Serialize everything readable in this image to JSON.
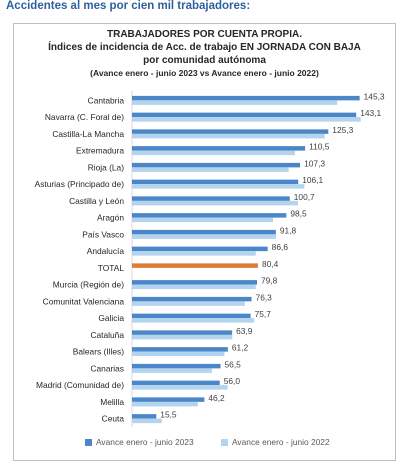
{
  "heading": "Accidentes al mes por cien mil trabajadores:",
  "chart_data": {
    "type": "bar",
    "orientation": "horizontal",
    "title": [
      "TRABAJADORES POR CUENTA PROPIA.",
      "Índices de incidencia de Acc. de trabajo EN JORNADA CON BAJA",
      "por comunidad autónoma",
      "(Avance enero - junio 2023 vs Avance enero - junio 2022)"
    ],
    "categories": [
      "Cantabria",
      "Navarra (C. Foral de)",
      "Castilla-La Mancha",
      "Extremadura",
      "Rioja (La)",
      "Asturias (Principado de)",
      "Castilla y León",
      "Aragón",
      "País Vasco",
      "Andalucía",
      "TOTAL",
      "Murcia (Región de)",
      "Comunitat Valenciana",
      "Galicia",
      "Cataluña",
      "Balears (Illes)",
      "Canarias",
      "Madrid (Comunidad de)",
      "Melilla",
      "Ceuta"
    ],
    "labels": [
      "145,3",
      "143,1",
      "125,3",
      "110,5",
      "107,3",
      "106,1",
      "100,7",
      "98,5",
      "91,8",
      "86,6",
      "80,4",
      "79,8",
      "76,3",
      "75,7",
      "63,9",
      "61,2",
      "56,5",
      "56,0",
      "46,2",
      "15,5"
    ],
    "series": [
      {
        "name": "Avance enero - junio 2023",
        "color": "#4a86c8",
        "values": [
          145.3,
          143.1,
          125.3,
          110.5,
          107.3,
          106.1,
          100.7,
          98.5,
          91.8,
          86.6,
          80.4,
          79.8,
          76.3,
          75.7,
          63.9,
          61.2,
          56.5,
          56.0,
          46.2,
          15.5
        ]
      },
      {
        "name": "Avance enero - junio 2022",
        "color": "#b4d3ee",
        "values": [
          131,
          146,
          123,
          104,
          100,
          110,
          106,
          90,
          92,
          79,
          76,
          79,
          72,
          78,
          64,
          59,
          51,
          61,
          42,
          19
        ]
      }
    ],
    "highlight": {
      "category": "TOTAL",
      "color": "#e07b39"
    },
    "xlim": [
      0,
      150
    ],
    "grid": false,
    "legend_position": "bottom"
  }
}
